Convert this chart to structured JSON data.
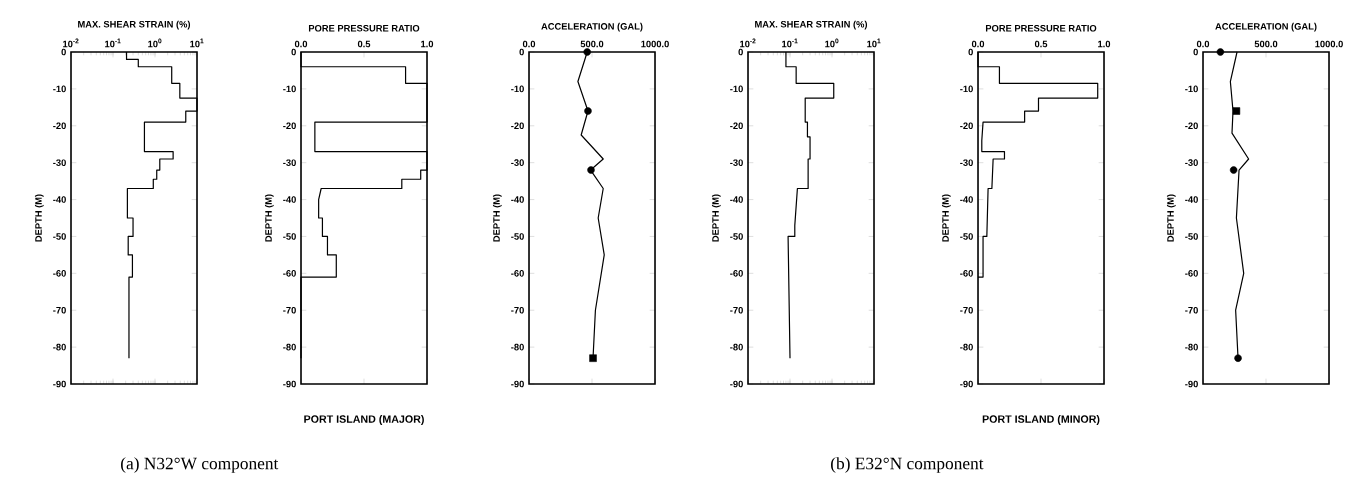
{
  "chart_data": [
    {
      "type": "line",
      "xlabel": "MAX. SHEAR STRAIN (%)",
      "ylabel": "DEPTH (M)",
      "log": "x",
      "xlim": [
        0.01,
        10
      ],
      "xticks": [
        {
          "value": 0.01,
          "label": "10$^{-2}$"
        },
        {
          "value": 0.1,
          "label": "10$^{-1}$"
        },
        {
          "value": 1,
          "label": "10$^{0}$"
        },
        {
          "value": 10,
          "label": "10$^{1}$"
        }
      ],
      "ylim": [
        -90,
        0
      ],
      "yticks": [
        0,
        -10,
        -20,
        -30,
        -40,
        -50,
        -60,
        -70,
        -80,
        -90
      ],
      "annotations": [
        "(a) N32°W component"
      ],
      "series": [
        {
          "color": "#000000",
          "x": [
            0.21,
            0.21,
            0.4,
            0.4,
            2.5,
            2.5,
            3.9,
            3.9,
            10,
            10,
            5.4,
            5.4,
            0.56,
            0.56,
            2.7,
            2.7,
            1.3,
            1.3,
            1.1,
            1.1,
            0.91,
            0.91,
            0.22,
            0.22,
            0.3,
            0.3,
            0.23,
            0.23,
            0.29,
            0.29,
            0.24,
            0.24
          ],
          "values": [
            0,
            -2,
            -2,
            -4,
            -4,
            -8.5,
            -8.5,
            -12.5,
            -12.5,
            -16,
            -16,
            -19,
            -19,
            -27,
            -27,
            -29,
            -29,
            -32,
            -32,
            -34.5,
            -34.5,
            -37,
            -37,
            -45,
            -45,
            -50,
            -50,
            -55,
            -55,
            -61,
            -61,
            -83
          ]
        }
      ]
    },
    {
      "type": "line",
      "xlabel": "PORE PRESSURE RATIO",
      "ylabel": "DEPTH (M)",
      "xlim": [
        0,
        1
      ],
      "xticks": [
        {
          "value": 0,
          "label": "0.0"
        },
        {
          "value": 0.5,
          "label": "0.5"
        },
        {
          "value": 1,
          "label": "1.0"
        }
      ],
      "ylim": [
        -90,
        0
      ],
      "yticks": [
        0,
        -10,
        -20,
        -30,
        -40,
        -50,
        -60,
        -70,
        -80,
        -90
      ],
      "annotations": [
        "PORT ISLAND (MAJOR)"
      ],
      "series": [
        {
          "color": "#000000",
          "x": [
            0,
            0,
            0.83,
            0.83,
            1,
            1,
            0.11,
            0.11,
            1,
            1,
            0.95,
            0.95,
            0.8,
            0.8,
            0.16,
            0.14,
            0.14,
            0.17,
            0.17,
            0.21,
            0.21,
            0.28,
            0.28,
            0,
            0
          ],
          "values": [
            0,
            -4,
            -4,
            -8.5,
            -8.5,
            -19,
            -19,
            -27,
            -27,
            -32,
            -32,
            -34.5,
            -34.5,
            -37,
            -37,
            -40,
            -45,
            -45,
            -50,
            -50,
            -55,
            -55,
            -61,
            -61,
            -83
          ]
        }
      ]
    },
    {
      "type": "line",
      "xlabel": "ACCELERATION (GAL)",
      "ylabel": "DEPTH (M)",
      "xlim": [
        0,
        1000
      ],
      "xticks": [
        {
          "value": 0,
          "label": "0.0"
        },
        {
          "value": 500,
          "label": "500.0"
        },
        {
          "value": 1000,
          "label": "1000.0"
        }
      ],
      "ylim": [
        -90,
        0
      ],
      "yticks": [
        0,
        -10,
        -20,
        -30,
        -40,
        -50,
        -60,
        -70,
        -80,
        -90
      ],
      "series": [
        {
          "color": "#000000",
          "x": [
            462,
            388,
            468,
            414,
            589,
            489,
            589,
            549,
            597,
            527,
            508
          ],
          "values": [
            0,
            -8,
            -16,
            -22.5,
            -29,
            -32,
            -37,
            -45,
            -55,
            -70,
            -83
          ]
        },
        {
          "type": "scatter",
          "marker": "circle",
          "color": "#000000",
          "x": [
            462,
            468,
            492
          ],
          "values": [
            0,
            -16,
            -32
          ]
        },
        {
          "type": "scatter",
          "marker": "square",
          "color": "#000000",
          "x": [
            508
          ],
          "values": [
            -83
          ]
        }
      ]
    },
    {
      "type": "line",
      "xlabel": "MAX. SHEAR STRAIN (%)",
      "ylabel": "DEPTH (M)",
      "log": "x",
      "xlim": [
        0.01,
        10
      ],
      "xticks": [
        {
          "value": 0.01,
          "label": "10$^{-2}$"
        },
        {
          "value": 0.1,
          "label": "10$^{-1}$"
        },
        {
          "value": 1,
          "label": "10$^{0}$"
        },
        {
          "value": 10,
          "label": "10$^{1}$"
        }
      ],
      "ylim": [
        -90,
        0
      ],
      "yticks": [
        0,
        -10,
        -20,
        -30,
        -40,
        -50,
        -60,
        -70,
        -80,
        -90
      ],
      "annotations": [
        "(b) E32°N component"
      ],
      "series": [
        {
          "color": "#000000",
          "x": [
            0.08,
            0.08,
            0.14,
            0.14,
            1.1,
            1.1,
            0.23,
            0.23,
            0.26,
            0.26,
            0.3,
            0.3,
            0.27,
            0.27,
            0.15,
            0.13,
            0.13,
            0.09,
            0.1
          ],
          "values": [
            0,
            -4,
            -4,
            -8.5,
            -8.5,
            -12.5,
            -12.5,
            -19,
            -19,
            -23,
            -23,
            -29,
            -29,
            -37,
            -37,
            -47,
            -50,
            -50,
            -83
          ]
        }
      ]
    },
    {
      "type": "line",
      "xlabel": "PORE PRESSURE RATIO",
      "ylabel": "DEPTH (M)",
      "xlim": [
        0,
        1
      ],
      "xticks": [
        {
          "value": 0,
          "label": "0.0"
        },
        {
          "value": 0.5,
          "label": "0.5"
        },
        {
          "value": 1,
          "label": "1.0"
        }
      ],
      "ylim": [
        -90,
        0
      ],
      "yticks": [
        0,
        -10,
        -20,
        -30,
        -40,
        -50,
        -60,
        -70,
        -80,
        -90
      ],
      "annotations": [
        "PORT ISLAND (MINOR)"
      ],
      "series": [
        {
          "color": "#000000",
          "x": [
            0,
            0,
            0.17,
            0.17,
            0.95,
            0.95,
            0.48,
            0.48,
            0.37,
            0.37,
            0.04,
            0.03,
            0.03,
            0.21,
            0.21,
            0.12,
            0.11,
            0.08,
            0.07,
            0.04,
            0.04,
            0
          ],
          "values": [
            0,
            -4,
            -4,
            -8.5,
            -8.5,
            -12.5,
            -12.5,
            -16,
            -16,
            -19,
            -19,
            -24,
            -27,
            -27,
            -29,
            -29,
            -37,
            -37,
            -50,
            -50,
            -61,
            -61
          ]
        }
      ]
    },
    {
      "type": "line",
      "xlabel": "ACCELERATION (GAL)",
      "ylabel": "DEPTH (M)",
      "xlim": [
        0,
        1000
      ],
      "xticks": [
        {
          "value": 0,
          "label": "0.0"
        },
        {
          "value": 500,
          "label": "500.0"
        },
        {
          "value": 1000,
          "label": "1000.0"
        }
      ],
      "ylim": [
        -90,
        0
      ],
      "yticks": [
        0,
        -10,
        -20,
        -30,
        -40,
        -50,
        -60,
        -70,
        -80,
        -90
      ],
      "series": [
        {
          "color": "#000000",
          "x": [
            270,
            217,
            238,
            230,
            362,
            286,
            265,
            323,
            259,
            278
          ],
          "values": [
            0,
            -8,
            -16,
            -22,
            -29,
            -32,
            -45,
            -60,
            -70,
            -83
          ]
        },
        {
          "type": "scatter",
          "marker": "circle",
          "color": "#000000",
          "x": [
            138,
            243,
            278
          ],
          "values": [
            0,
            -32,
            -83
          ]
        },
        {
          "type": "scatter",
          "marker": "square",
          "color": "#000000",
          "x": [
            265
          ],
          "values": [
            -16
          ]
        }
      ]
    }
  ]
}
